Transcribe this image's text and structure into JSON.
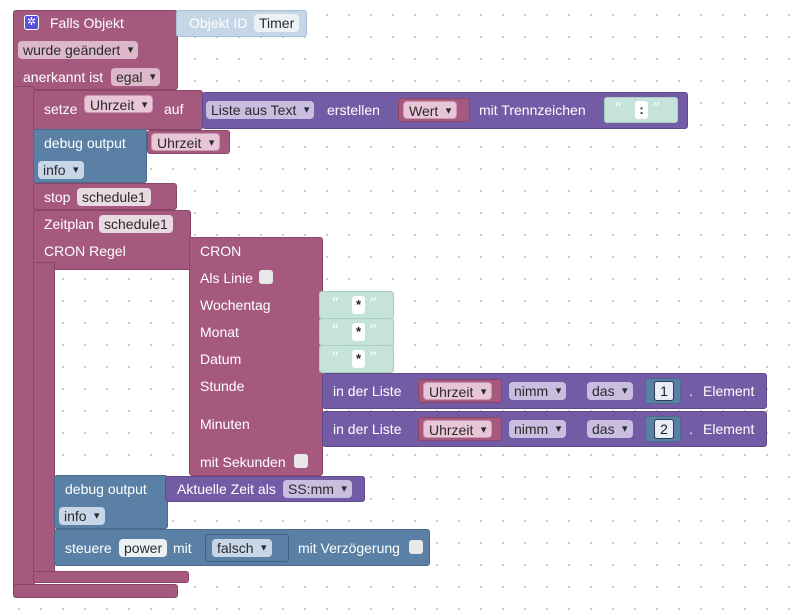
{
  "trigger": {
    "title": "Falls Objekt",
    "object_label": "Objekt ID",
    "object_id": "Timer",
    "event": "wurde geändert",
    "ack_label": "anerkannt ist",
    "ack_value": "egal",
    "icon": "gear-icon"
  },
  "set_var": {
    "label": "setze",
    "variable": "Uhrzeit",
    "to": "auf",
    "list_from": "Liste aus Text",
    "create": "erstellen",
    "source": "Wert",
    "sep_label": "mit Trennzeichen",
    "quote_open": "“",
    "separator": ":",
    "quote_close": "”"
  },
  "debug1": {
    "label": "debug output",
    "variable": "Uhrzeit",
    "level": "info"
  },
  "stop": {
    "label": "stop",
    "name": "schedule1"
  },
  "schedule": {
    "label": "Zeitplan",
    "name": "schedule1",
    "cron_rule": "CRON Regel",
    "cron": "CRON",
    "as_line": "Als Linie",
    "weekday": "Wochentag",
    "month": "Monat",
    "date": "Datum",
    "hour": "Stunde",
    "minutes": "Minuten",
    "with_seconds": "mit Sekunden",
    "star": "*"
  },
  "hour_list": {
    "in_list": "in der Liste",
    "variable": "Uhrzeit",
    "take": "nimm",
    "the": "das",
    "index": "1",
    "dot": ".",
    "element": "Element"
  },
  "minute_list": {
    "in_list": "in der Liste",
    "variable": "Uhrzeit",
    "take": "nimm",
    "the": "das",
    "index": "2",
    "dot": ".",
    "element": "Element"
  },
  "debug2": {
    "label": "debug output",
    "time_label": "Aktuelle Zeit als",
    "format": "SS:mm",
    "level": "info"
  },
  "control": {
    "label": "steuere",
    "target": "power",
    "with": "mit",
    "value": "falsch",
    "delay": "mit Verzögerung"
  }
}
